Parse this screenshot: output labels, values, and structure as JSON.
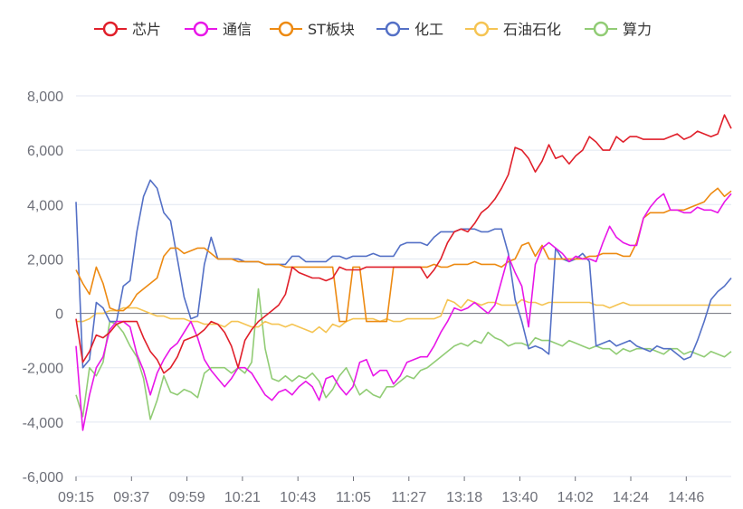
{
  "chart_data": {
    "type": "line",
    "x_ticks": [
      "09:15",
      "09:37",
      "09:59",
      "10:21",
      "10:43",
      "11:05",
      "11:27",
      "13:18",
      "13:40",
      "14:02",
      "14:24",
      "14:46"
    ],
    "ylim": [
      -6000,
      8000
    ],
    "y_ticks": [
      -6000,
      -4000,
      -2000,
      0,
      2000,
      4000,
      6000,
      8000
    ],
    "y_tick_labels": [
      "-6,000",
      "-4,000",
      "-2,000",
      "0",
      "2,000",
      "4,000",
      "6,000",
      "8,000"
    ],
    "grid": true,
    "legend_position": "top",
    "series": [
      {
        "name": "芯片",
        "color": "#e01f2a",
        "values": [
          -200,
          -1800,
          -1400,
          -800,
          -900,
          -700,
          -400,
          -300,
          -300,
          -300,
          -900,
          -1400,
          -1700,
          -2200,
          -2000,
          -1600,
          -1000,
          -900,
          -800,
          -600,
          -300,
          -400,
          -700,
          -1200,
          -2000,
          -1000,
          -600,
          -300,
          -100,
          100,
          300,
          700,
          1700,
          1500,
          1400,
          1300,
          1300,
          1200,
          1300,
          1700,
          1600,
          1600,
          1600,
          1700,
          1700,
          1700,
          1700,
          1700,
          1700,
          1700,
          1700,
          1700,
          1300,
          1600,
          2000,
          2600,
          3000,
          3100,
          3000,
          3300,
          3700,
          3900,
          4200,
          4600,
          5100,
          6100,
          6000,
          5700,
          5200,
          5600,
          6200,
          5700,
          5800,
          5500,
          5800,
          6000,
          6500,
          6300,
          6000,
          6000,
          6500,
          6300,
          6500,
          6500,
          6400,
          6400,
          6400,
          6400,
          6500,
          6600,
          6400,
          6500,
          6700,
          6600,
          6500,
          6600,
          7300,
          6800
        ]
      },
      {
        "name": "通信",
        "color": "#e817e8",
        "values": [
          -1200,
          -4300,
          -3000,
          -2000,
          -1600,
          -600,
          -300,
          -300,
          -500,
          -1500,
          -2100,
          -3000,
          -2200,
          -1700,
          -1300,
          -1100,
          -700,
          -300,
          -900,
          -1700,
          -2100,
          -2400,
          -2700,
          -2400,
          -2000,
          -2000,
          -2200,
          -2600,
          -3000,
          -3200,
          -2900,
          -2800,
          -3000,
          -2700,
          -2500,
          -2700,
          -3200,
          -2400,
          -2300,
          -2700,
          -3000,
          -2700,
          -1800,
          -1700,
          -2300,
          -2100,
          -2100,
          -2600,
          -2300,
          -1800,
          -1700,
          -1600,
          -1600,
          -1200,
          -700,
          -300,
          200,
          100,
          200,
          400,
          200,
          0,
          300,
          1200,
          2100,
          1500,
          1000,
          -500,
          1800,
          2400,
          2600,
          2400,
          2200,
          1900,
          2100,
          2000,
          2000,
          1900,
          2600,
          3200,
          2800,
          2600,
          2500,
          2500,
          3500,
          3900,
          4200,
          4400,
          3800,
          3800,
          3700,
          3700,
          3900,
          3800,
          3800,
          3700,
          4100,
          4400
        ]
      },
      {
        "name": "ST板块",
        "color": "#ed8a12",
        "values": [
          1600,
          1100,
          700,
          1700,
          1100,
          200,
          100,
          100,
          300,
          700,
          900,
          1100,
          1300,
          2100,
          2400,
          2400,
          2200,
          2300,
          2400,
          2400,
          2200,
          2000,
          2000,
          2000,
          1900,
          1900,
          1900,
          1900,
          1800,
          1800,
          1800,
          1700,
          1700,
          1700,
          1700,
          1700,
          1700,
          1700,
          1700,
          -300,
          -300,
          1700,
          1700,
          -300,
          -300,
          -300,
          -300,
          1700,
          1700,
          1700,
          1700,
          1700,
          1700,
          1800,
          1700,
          1700,
          1800,
          1800,
          1800,
          1900,
          1800,
          1800,
          1800,
          1700,
          1900,
          2000,
          2500,
          2600,
          2100,
          2500,
          2000,
          2000,
          2000,
          2000,
          2000,
          2000,
          2100,
          2100,
          2200,
          2200,
          2200,
          2100,
          2100,
          2600,
          3500,
          3700,
          3700,
          3700,
          3800,
          3800,
          3800,
          3900,
          4000,
          4100,
          4400,
          4600,
          4300,
          4500
        ]
      },
      {
        "name": "化工",
        "color": "#5470c6",
        "values": [
          4100,
          -2000,
          -1700,
          400,
          200,
          -300,
          -300,
          1000,
          1200,
          3000,
          4300,
          4900,
          4600,
          3700,
          3400,
          2000,
          600,
          -200,
          -100,
          1800,
          2800,
          2000,
          2000,
          2000,
          2000,
          1900,
          1900,
          1900,
          1800,
          1800,
          1800,
          1800,
          2100,
          2100,
          1900,
          1900,
          1900,
          1900,
          2100,
          2100,
          2000,
          2100,
          2100,
          2100,
          2200,
          2100,
          2100,
          2100,
          2500,
          2600,
          2600,
          2600,
          2500,
          2800,
          3000,
          3000,
          3000,
          3100,
          3100,
          3100,
          3000,
          3000,
          3100,
          3100,
          2200,
          500,
          -300,
          -1300,
          -1200,
          -1300,
          -1500,
          2400,
          2000,
          1900,
          2000,
          2200,
          1900,
          -1200,
          -1100,
          -1000,
          -1200,
          -1100,
          -1000,
          -1200,
          -1300,
          -1400,
          -1200,
          -1300,
          -1300,
          -1500,
          -1700,
          -1600,
          -1000,
          -300,
          500,
          800,
          1000,
          1300
        ]
      },
      {
        "name": "石油石化",
        "color": "#f5c453",
        "values": [
          -300,
          -300,
          -200,
          0,
          0,
          100,
          100,
          200,
          200,
          200,
          100,
          0,
          -100,
          -100,
          -200,
          -200,
          -200,
          -300,
          -300,
          -400,
          -400,
          -400,
          -500,
          -300,
          -300,
          -400,
          -500,
          -500,
          -300,
          -400,
          -400,
          -500,
          -400,
          -500,
          -600,
          -700,
          -500,
          -700,
          -400,
          -500,
          -300,
          -200,
          -200,
          -200,
          -200,
          -300,
          -200,
          -300,
          -300,
          -200,
          -200,
          -200,
          -200,
          -200,
          -100,
          500,
          400,
          200,
          500,
          400,
          300,
          400,
          400,
          300,
          300,
          300,
          500,
          400,
          400,
          300,
          400,
          400,
          400,
          400,
          400,
          400,
          400,
          300,
          300,
          200,
          300,
          400,
          300,
          300,
          300,
          300,
          300,
          300,
          300,
          300,
          300,
          300,
          300,
          300,
          300,
          300,
          300,
          300
        ]
      },
      {
        "name": "算力",
        "color": "#91cc75",
        "values": [
          -3000,
          -3800,
          -2000,
          -2300,
          -1800,
          -300,
          -400,
          -700,
          -1200,
          -1600,
          -2400,
          -3900,
          -3200,
          -2300,
          -2900,
          -3000,
          -2800,
          -2900,
          -3100,
          -2200,
          -2000,
          -2000,
          -2000,
          -2200,
          -2000,
          -2200,
          -1800,
          900,
          -1300,
          -2400,
          -2500,
          -2300,
          -2500,
          -2300,
          -2400,
          -2200,
          -2500,
          -3100,
          -2800,
          -2300,
          -2000,
          -2500,
          -3000,
          -2800,
          -3000,
          -3100,
          -2700,
          -2700,
          -2500,
          -2300,
          -2400,
          -2100,
          -2000,
          -1800,
          -1600,
          -1400,
          -1200,
          -1100,
          -1200,
          -1000,
          -1100,
          -700,
          -900,
          -1000,
          -1200,
          -1100,
          -1100,
          -1200,
          -900,
          -1000,
          -1000,
          -1100,
          -1200,
          -1000,
          -1100,
          -1200,
          -1300,
          -1200,
          -1300,
          -1300,
          -1500,
          -1300,
          -1400,
          -1300,
          -1300,
          -1300,
          -1400,
          -1500,
          -1300,
          -1300,
          -1500,
          -1400,
          -1500,
          -1600,
          -1400,
          -1500,
          -1600,
          -1400
        ]
      }
    ]
  }
}
